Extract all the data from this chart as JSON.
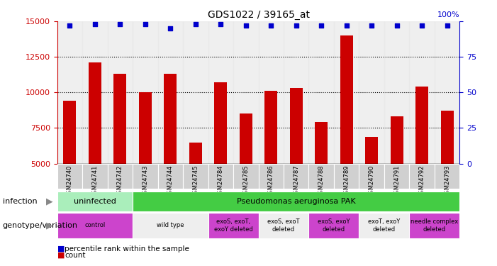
{
  "title": "GDS1022 / 39165_at",
  "samples": [
    "GSM24740",
    "GSM24741",
    "GSM24742",
    "GSM24743",
    "GSM24744",
    "GSM24745",
    "GSM24784",
    "GSM24785",
    "GSM24786",
    "GSM24787",
    "GSM24788",
    "GSM24789",
    "GSM24790",
    "GSM24791",
    "GSM24792",
    "GSM24793"
  ],
  "counts": [
    9400,
    12100,
    11300,
    10000,
    11300,
    6500,
    10700,
    8500,
    10100,
    10300,
    7900,
    14000,
    6900,
    8300,
    10400,
    8700
  ],
  "percentile": [
    97,
    98,
    98,
    98,
    95,
    98,
    98,
    97,
    97,
    97,
    97,
    97,
    97,
    97,
    97,
    97
  ],
  "ylim_left": [
    5000,
    15000
  ],
  "ylim_right": [
    0,
    100
  ],
  "yticks_left": [
    5000,
    7500,
    10000,
    12500,
    15000
  ],
  "yticks_right": [
    0,
    25,
    50,
    75,
    100
  ],
  "bar_color": "#cc0000",
  "dot_color": "#0000cc",
  "background_color": "#ffffff",
  "infection_row": {
    "label": "infection",
    "groups": [
      {
        "text": "uninfected",
        "start": 0,
        "end": 3,
        "color": "#aaeebb"
      },
      {
        "text": "Pseudomonas aeruginosa PAK",
        "start": 3,
        "end": 16,
        "color": "#44cc44"
      }
    ]
  },
  "genotype_row": {
    "label": "genotype/variation",
    "groups": [
      {
        "text": "control",
        "start": 0,
        "end": 3,
        "color": "#cc44cc"
      },
      {
        "text": "wild type",
        "start": 3,
        "end": 6,
        "color": "#eeeeee"
      },
      {
        "text": "exoS, exoT,\nexoY deleted",
        "start": 6,
        "end": 8,
        "color": "#cc44cc"
      },
      {
        "text": "exoS, exoT\ndeleted",
        "start": 8,
        "end": 10,
        "color": "#eeeeee"
      },
      {
        "text": "exoS, exoY\ndeleted",
        "start": 10,
        "end": 12,
        "color": "#cc44cc"
      },
      {
        "text": "exoT, exoY\ndeleted",
        "start": 12,
        "end": 14,
        "color": "#eeeeee"
      },
      {
        "text": "needle complex\ndeleted",
        "start": 14,
        "end": 16,
        "color": "#cc44cc"
      }
    ]
  },
  "legend_count_color": "#cc0000",
  "legend_dot_color": "#0000cc",
  "tick_color_left": "#cc0000",
  "tick_color_right": "#0000cc",
  "right_axis_top_label": "100%"
}
